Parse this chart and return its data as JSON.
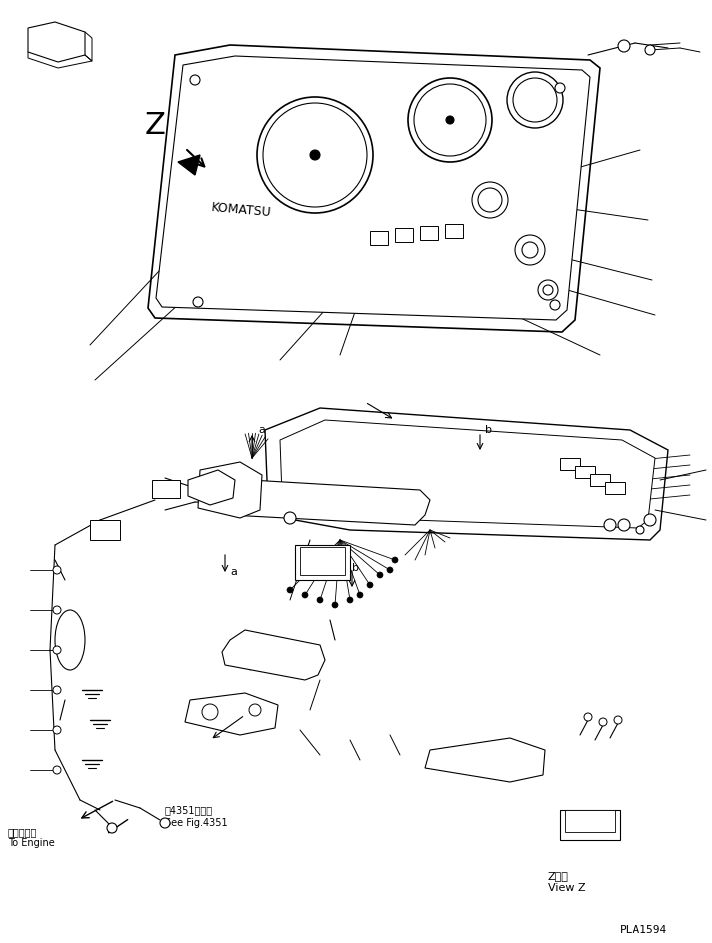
{
  "bg_color": "#ffffff",
  "line_color": "#000000",
  "fig_width": 7.12,
  "fig_height": 9.43,
  "dpi": 100,
  "label_PLA": "PLA1594",
  "label_view_z_ja": "Z　視",
  "label_view_z_en": "View Z",
  "label_engine_ja": "エンジンへ",
  "label_engine_en": "To Engine",
  "label_see_fig_ja": "笥4351図参照",
  "label_see_fig_en": "See Fig.4351",
  "label_Z": "Z",
  "label_a1": "a",
  "label_b1": "b",
  "label_a2": "a",
  "label_b2": "b"
}
